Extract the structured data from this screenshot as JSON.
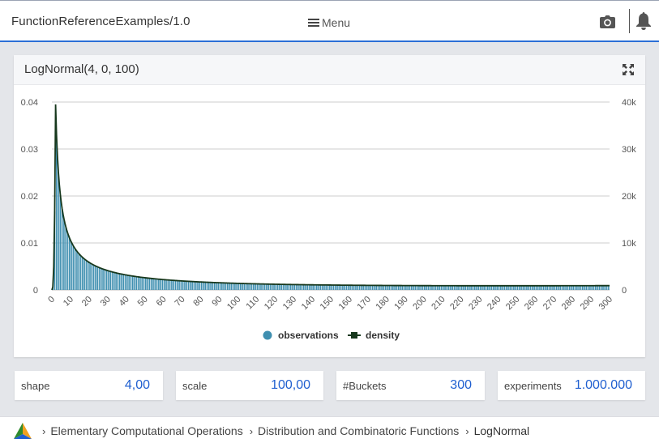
{
  "header": {
    "app_title": "FunctionReferenceExamples/1.0",
    "menu_label": "Menu",
    "icons": [
      "menu-icon",
      "camera-icon",
      "bell-icon"
    ]
  },
  "panel": {
    "title": "LogNormal(4, 0, 100)",
    "expand_icon": "expand-icon"
  },
  "chart_data": {
    "type": "bar",
    "xlim": [
      0,
      300
    ],
    "ylim_left": [
      0,
      0.04
    ],
    "ylim_right": [
      0,
      40000
    ],
    "x_ticks": [
      "0",
      "10",
      "20",
      "30",
      "40",
      "50",
      "60",
      "70",
      "80",
      "90",
      "100",
      "110",
      "120",
      "130",
      "140",
      "150",
      "160",
      "170",
      "180",
      "190",
      "200",
      "210",
      "220",
      "230",
      "240",
      "250",
      "260",
      "270",
      "280",
      "290",
      "300"
    ],
    "y_left_ticks": [
      "0",
      "0.01",
      "0.02",
      "0.03",
      "0.04"
    ],
    "y_right_ticks": [
      "0",
      "10k",
      "20k",
      "30k",
      "40k"
    ],
    "grid": true,
    "legend_position": "bottom",
    "series": [
      {
        "name": "observations",
        "kind": "bar",
        "axis": "right",
        "color": "#3f8fb0"
      },
      {
        "name": "density",
        "kind": "line",
        "axis": "left",
        "color": "#17381d"
      }
    ],
    "buckets": 300,
    "peak_x": 2,
    "peak_value": 0.0395,
    "values_at": {
      "x": [
        1,
        2,
        3,
        5,
        10,
        20,
        30,
        40,
        50,
        70,
        100,
        150,
        200,
        250,
        300
      ],
      "density": [
        0.0005,
        0.0395,
        0.039,
        0.033,
        0.023,
        0.0135,
        0.0093,
        0.007,
        0.0057,
        0.0042,
        0.003,
        0.0019,
        0.0013,
        0.001,
        0.0008
      ]
    }
  },
  "params": {
    "shape": {
      "label": "shape",
      "value": "4,00"
    },
    "scale": {
      "label": "scale",
      "value": "100,00"
    },
    "buckets": {
      "label": "#Buckets",
      "value": "300"
    },
    "experiments": {
      "label": "experiments",
      "value": "1.000.000"
    }
  },
  "breadcrumb": {
    "items": [
      "Elementary Computational Operations",
      "Distribution and Combinatoric Functions",
      "LogNormal"
    ]
  },
  "colors": {
    "accent": "#2b6fd6",
    "value_blue": "#1f5fd0",
    "bar": "#3f8fb0",
    "line": "#17381d"
  }
}
